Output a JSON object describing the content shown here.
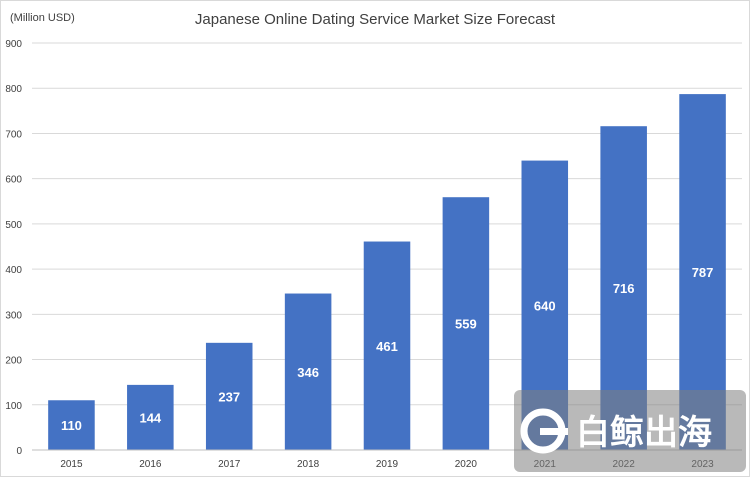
{
  "chart_data": {
    "type": "bar",
    "title": "Japanese Online Dating Service Market Size Forecast",
    "ylabel": "(Million USD)",
    "xlabel": "",
    "categories": [
      "2015",
      "2016",
      "2017",
      "2018",
      "2019",
      "2020",
      "2021",
      "2022",
      "2023"
    ],
    "values": [
      110,
      144,
      237,
      346,
      461,
      559,
      640,
      716,
      787
    ],
    "data_labels": [
      "110",
      "144",
      "237",
      "346",
      "461",
      "559",
      "640",
      "716",
      "787"
    ],
    "ylim": [
      0,
      900
    ],
    "yticks": [
      0,
      100,
      200,
      300,
      400,
      500,
      600,
      700,
      800,
      900
    ],
    "grid": true,
    "legend": "none",
    "bar_color": "#4472c4"
  },
  "watermark": {
    "text": "白鲸出海",
    "icon": "whale-logo-icon"
  }
}
